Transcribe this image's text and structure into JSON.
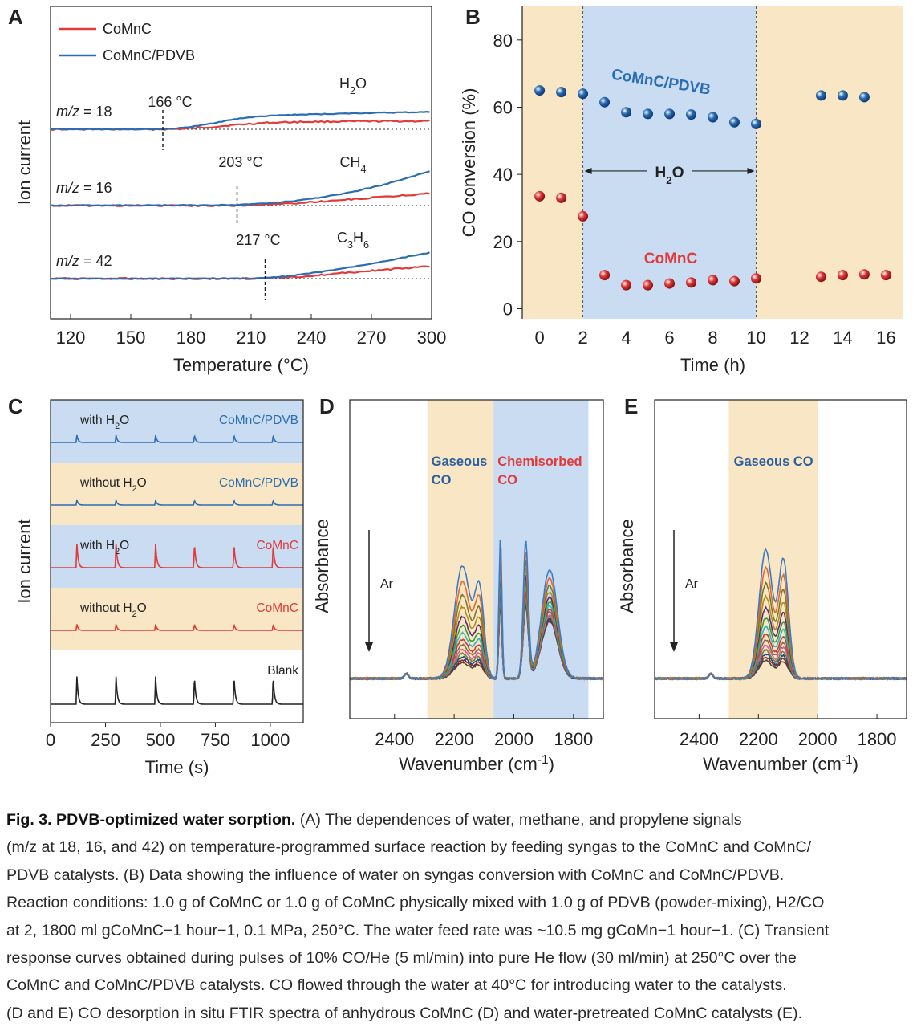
{
  "chart_data": [
    {
      "panel": "A",
      "type": "line",
      "xlabel": "Temperature (°C)",
      "ylabel": "Ion current",
      "xlim": [
        110,
        300
      ],
      "xticks": [
        "120",
        "150",
        "180",
        "210",
        "240",
        "270",
        "300"
      ],
      "legend": [
        "CoMnC",
        "CoMnC/PDVB"
      ],
      "colors": {
        "CoMnC": "#e23a3a",
        "CoMnC/PDVB": "#2b6db3"
      },
      "traces": [
        {
          "mz_prefix": "m/z",
          "mz_value": " = 18",
          "species": "H",
          "species_sub": "2",
          "species_tail": "O",
          "onset_label": "166 °C",
          "x": [
            110,
            160,
            166,
            175,
            185,
            195,
            205,
            215,
            230,
            250,
            270,
            300
          ],
          "pdvb": [
            0,
            0.05,
            0.1,
            0.5,
            1.6,
            3.2,
            4.6,
            5.4,
            6.0,
            6.4,
            6.8,
            7.2
          ],
          "comnc": [
            0,
            0,
            0.02,
            0.15,
            0.6,
            1.3,
            2.0,
            2.6,
            3.0,
            3.2,
            3.3,
            3.4
          ]
        },
        {
          "mz_prefix": "m/z",
          "mz_value": " = 16",
          "species": "CH",
          "species_sub": "4",
          "species_tail": "",
          "onset_label": "203 °C",
          "x": [
            110,
            180,
            203,
            215,
            230,
            245,
            260,
            275,
            290,
            300
          ],
          "pdvb": [
            0,
            0.1,
            0.3,
            0.8,
            1.8,
            3.4,
            5.6,
            8.4,
            12.0,
            14.5
          ],
          "comnc": [
            0,
            0,
            0.05,
            0.3,
            0.9,
            1.7,
            2.6,
            3.5,
            4.5,
            5.2
          ]
        },
        {
          "mz_prefix": "m/z",
          "mz_value": " = 42",
          "species": "C",
          "species_sub": "3",
          "species_tail": "H",
          "species_sub2": "6",
          "onset_label": "217 °C",
          "x": [
            110,
            200,
            217,
            230,
            245,
            260,
            275,
            290,
            300
          ],
          "pdvb": [
            0,
            0.05,
            0.2,
            1.2,
            2.8,
            4.8,
            7.0,
            9.4,
            11.0
          ],
          "comnc": [
            0,
            0,
            0.05,
            0.6,
            1.5,
            2.6,
            3.6,
            4.5,
            5.1
          ]
        }
      ]
    },
    {
      "panel": "B",
      "type": "scatter",
      "xlabel": "Time (h)",
      "ylabel": "CO conversion (%)",
      "xlim": [
        -0.8,
        16.8
      ],
      "ylim": [
        -3,
        90
      ],
      "xticks": [
        0,
        2,
        4,
        6,
        8,
        10,
        12,
        14,
        16
      ],
      "yticks": [
        0,
        20,
        40,
        60,
        80
      ],
      "shaded_regions": [
        {
          "from": -0.8,
          "to": 2,
          "color": "#f8e6c4"
        },
        {
          "from": 2,
          "to": 10,
          "color": "#c9dcf2"
        },
        {
          "from": 10,
          "to": 16.8,
          "color": "#f8e6c4"
        }
      ],
      "h2o_annotation": {
        "label": "H",
        "sub": "2",
        "tail": "O",
        "from": 2,
        "to": 10,
        "y": 41
      },
      "series": [
        {
          "name": "CoMnC/PDVB",
          "color": "#2b6db3",
          "x": [
            0,
            1,
            2,
            3,
            4,
            5,
            6,
            7,
            8,
            9,
            10,
            13,
            14,
            15
          ],
          "y": [
            65,
            64.5,
            64,
            61.5,
            58.5,
            58,
            58,
            57.8,
            57,
            55.5,
            55,
            63.5,
            63.5,
            63
          ]
        },
        {
          "name": "CoMnC",
          "color": "#e03a3a",
          "x": [
            0,
            1,
            2,
            3,
            4,
            5,
            6,
            7,
            8,
            9,
            10,
            13,
            14,
            15,
            16
          ],
          "y": [
            33.5,
            33,
            27.5,
            10,
            7,
            7,
            7.5,
            7.8,
            8.5,
            8.2,
            9,
            9.5,
            10,
            10.2,
            10
          ]
        }
      ]
    },
    {
      "panel": "C",
      "type": "line",
      "xlabel": "Time (s)",
      "ylabel": "Ion current",
      "xlim": [
        0,
        1150
      ],
      "xticks": [
        0,
        250,
        500,
        750,
        1000
      ],
      "pulse_times": [
        120,
        298,
        478,
        655,
        835,
        1013
      ],
      "rows": [
        {
          "label": "with H",
          "label_sub": "2",
          "label_tail": "O",
          "catalyst": "CoMnC/PDVB",
          "color": "#2b6db3",
          "bg": "#c9dcf2",
          "peak": 0.3
        },
        {
          "label": "without H",
          "label_sub": "2",
          "label_tail": "O",
          "catalyst": "CoMnC/PDVB",
          "color": "#2b6db3",
          "bg": "#f8e6c4",
          "peak": 0.2
        },
        {
          "label": "with H",
          "label_sub": "2",
          "label_tail": "O",
          "catalyst": "CoMnC",
          "color": "#e03a3a",
          "bg": "#c9dcf2",
          "peak": 1.0
        },
        {
          "label": "without H",
          "label_sub": "2",
          "label_tail": "O",
          "catalyst": "CoMnC",
          "color": "#e03a3a",
          "bg": "#f8e6c4",
          "peak": 0.25
        },
        {
          "label": "",
          "label_sub": "",
          "label_tail": "",
          "catalyst": "Blank",
          "color": "#222222",
          "bg": "#ffffff",
          "peak": 1.15
        }
      ]
    },
    {
      "panel": "D",
      "type": "line",
      "xlabel": "Wavenumber (cm",
      "xlabel_sup": "-1",
      "xlabel_tail": ")",
      "ylabel": "Absorbance",
      "xlim": [
        2550,
        1700
      ],
      "xticks": [
        2400,
        2200,
        2000,
        1800
      ],
      "arrow_label": "Ar",
      "regions": [
        {
          "from": 2290,
          "to": 2068,
          "color": "#f8e6c4",
          "label_lines": [
            "Gaseous",
            "CO"
          ],
          "label_color": "#2b5fa0"
        },
        {
          "from": 2068,
          "to": 1750,
          "color": "#c9dcf2",
          "label_lines": [
            "Chemisorbed",
            "CO"
          ],
          "label_color": "#e03a3a"
        }
      ],
      "n_spectra": 14
    },
    {
      "panel": "E",
      "type": "line",
      "xlabel": "Wavenumber (cm",
      "xlabel_sup": "-1",
      "xlabel_tail": ")",
      "ylabel": "Absorbance",
      "xlim": [
        2550,
        1700
      ],
      "xticks": [
        2400,
        2200,
        2000,
        1800
      ],
      "arrow_label": "Ar",
      "regions": [
        {
          "from": 2300,
          "to": 1998,
          "color": "#f8e6c4",
          "label_lines": [
            "Gaseous CO"
          ],
          "label_color": "#2b5fa0"
        }
      ],
      "n_spectra": 14
    }
  ],
  "spectrum_palette": [
    "#3a7bc8",
    "#e8672a",
    "#7a7a2a",
    "#b08c1c",
    "#5a2a7a",
    "#3a9a3a",
    "#2ab6c8",
    "#c83a3a",
    "#8a6a4a",
    "#d85aa0",
    "#6a8a3a",
    "#1a4a8a",
    "#8a2a2a",
    "#444444"
  ],
  "panel_labels": [
    "A",
    "B",
    "C",
    "D",
    "E"
  ],
  "caption": {
    "fig_label": "Fig. 3. PDVB-optimized water sorption.",
    "line1": "(A) The dependences of water, methane, and propylene signals",
    "line2": "(m/z at 18, 16, and 42) on temperature-programmed surface reaction by feeding syngas to the CoMnC and CoMnC/",
    "line3": "PDVB catalysts. (B) Data showing the influence of water on syngas conversion with CoMnC and CoMnC/PDVB.",
    "line4": "Reaction conditions: 1.0 g of CoMnC or 1.0 g of CoMnC physically mixed with 1.0 g of PDVB (powder-mixing), H2/CO",
    "line5": "at 2, 1800 ml gCoMnC−1 hour−1, 0.1 MPa, 250°C. The water feed rate was ~10.5 mg gCoMn−1 hour−1. (C) Transient",
    "line6": "response curves obtained during pulses of 10% CO/He (5 ml/min) into pure He flow (30 ml/min) at 250°C over the",
    "line7": "CoMnC and CoMnC/PDVB catalysts. CO flowed through the water at 40°C for introducing water to the catalysts.",
    "line8": "(D and E) CO desorption in situ FTIR spectra of anhydrous CoMnC (D) and water-pretreated CoMnC catalysts (E)."
  }
}
